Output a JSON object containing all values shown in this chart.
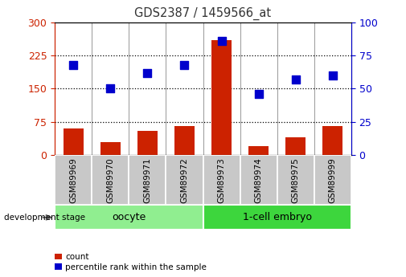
{
  "title": "GDS2387 / 1459566_at",
  "samples": [
    "GSM89969",
    "GSM89970",
    "GSM89971",
    "GSM89972",
    "GSM89973",
    "GSM89974",
    "GSM89975",
    "GSM89999"
  ],
  "counts": [
    60,
    30,
    55,
    65,
    260,
    20,
    40,
    65
  ],
  "percentiles": [
    68,
    50,
    62,
    68,
    86,
    46,
    57,
    60
  ],
  "groups": [
    {
      "label": "oocyte",
      "start": 0,
      "end": 4,
      "color": "#90EE90"
    },
    {
      "label": "1-cell embryo",
      "start": 4,
      "end": 8,
      "color": "#3DD63D"
    }
  ],
  "left_ylim": [
    0,
    300
  ],
  "right_ylim": [
    0,
    100
  ],
  "left_yticks": [
    0,
    75,
    150,
    225,
    300
  ],
  "right_yticks": [
    0,
    25,
    50,
    75,
    100
  ],
  "bar_color": "#CC2200",
  "dot_color": "#0000CC",
  "bg_color": "#FFFFFF",
  "plot_bg": "#FFFFFF",
  "title_color": "#333333",
  "left_tick_color": "#CC2200",
  "right_tick_color": "#0000CC",
  "bar_width": 0.55,
  "scale_factor": 3.0,
  "dot_size": 55,
  "legend_count_label": "count",
  "legend_pct_label": "percentile rank within the sample",
  "dev_stage_label": "development stage",
  "gray_box_color": "#C8C8C8",
  "separator_color": "#888888"
}
